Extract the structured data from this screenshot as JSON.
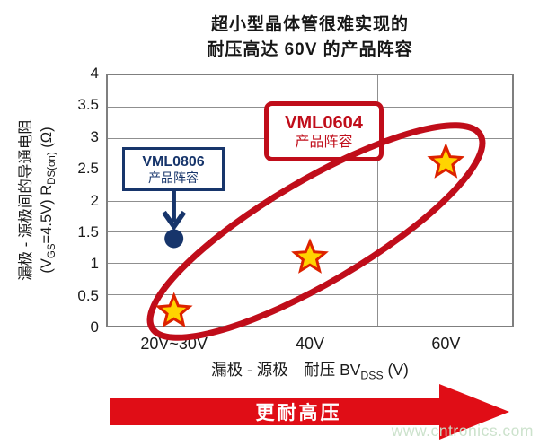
{
  "title": {
    "line1": "超小型晶体管很难实现的",
    "line2": "耐压高达 60V 的产品阵容"
  },
  "chart_data": {
    "type": "scatter",
    "categories": [
      "20V~30V",
      "40V",
      "60V"
    ],
    "ylim": [
      0,
      4
    ],
    "ytick_step": 0.5,
    "yticks": [
      "4",
      "3.5",
      "3",
      "2.5",
      "2",
      "1.5",
      "1",
      "0.5",
      "0"
    ],
    "grid": true,
    "xlabel_parts": {
      "pre": "漏极 - 源极　耐压 BV",
      "sub": "DSS",
      "post": " (V)"
    },
    "ylabel": {
      "line1": "漏极 - 源极间的导通电阻",
      "line2_parts": {
        "p1": "(V",
        "sub1": "GS",
        "p2": "=4.5V)  R",
        "sub2": "DS(on)",
        "p3": " (Ω)"
      }
    },
    "series": [
      {
        "name": "VML0604 产品阵容",
        "marker": "star",
        "color": "#c00d1a",
        "points": [
          {
            "category": "20V~30V",
            "x": 0,
            "y": 0.25
          },
          {
            "category": "40V",
            "x": 1,
            "y": 1.1
          },
          {
            "category": "60V",
            "x": 2,
            "y": 2.6
          }
        ]
      },
      {
        "name": "VML0806 产品阵容",
        "marker": "circle",
        "color": "#17356b",
        "points": [
          {
            "category": "20V~30V",
            "x": 0,
            "y": 1.4
          }
        ]
      }
    ]
  },
  "annotations": {
    "vml0604_label": {
      "line1": "VML0604",
      "line2": "产品阵容"
    },
    "vml0806_label": {
      "line1": "VML0806",
      "line2": "产品阵容"
    }
  },
  "bottom_arrow": {
    "label": "更耐高压"
  },
  "watermark": "www.cntronics.com",
  "colors": {
    "red": "#c00d1a",
    "arrow_red": "#e00d16",
    "navy": "#17356b",
    "star_fill": "#ffd400",
    "star_stroke": "#dd2200",
    "grid": "#8f8f8f"
  }
}
